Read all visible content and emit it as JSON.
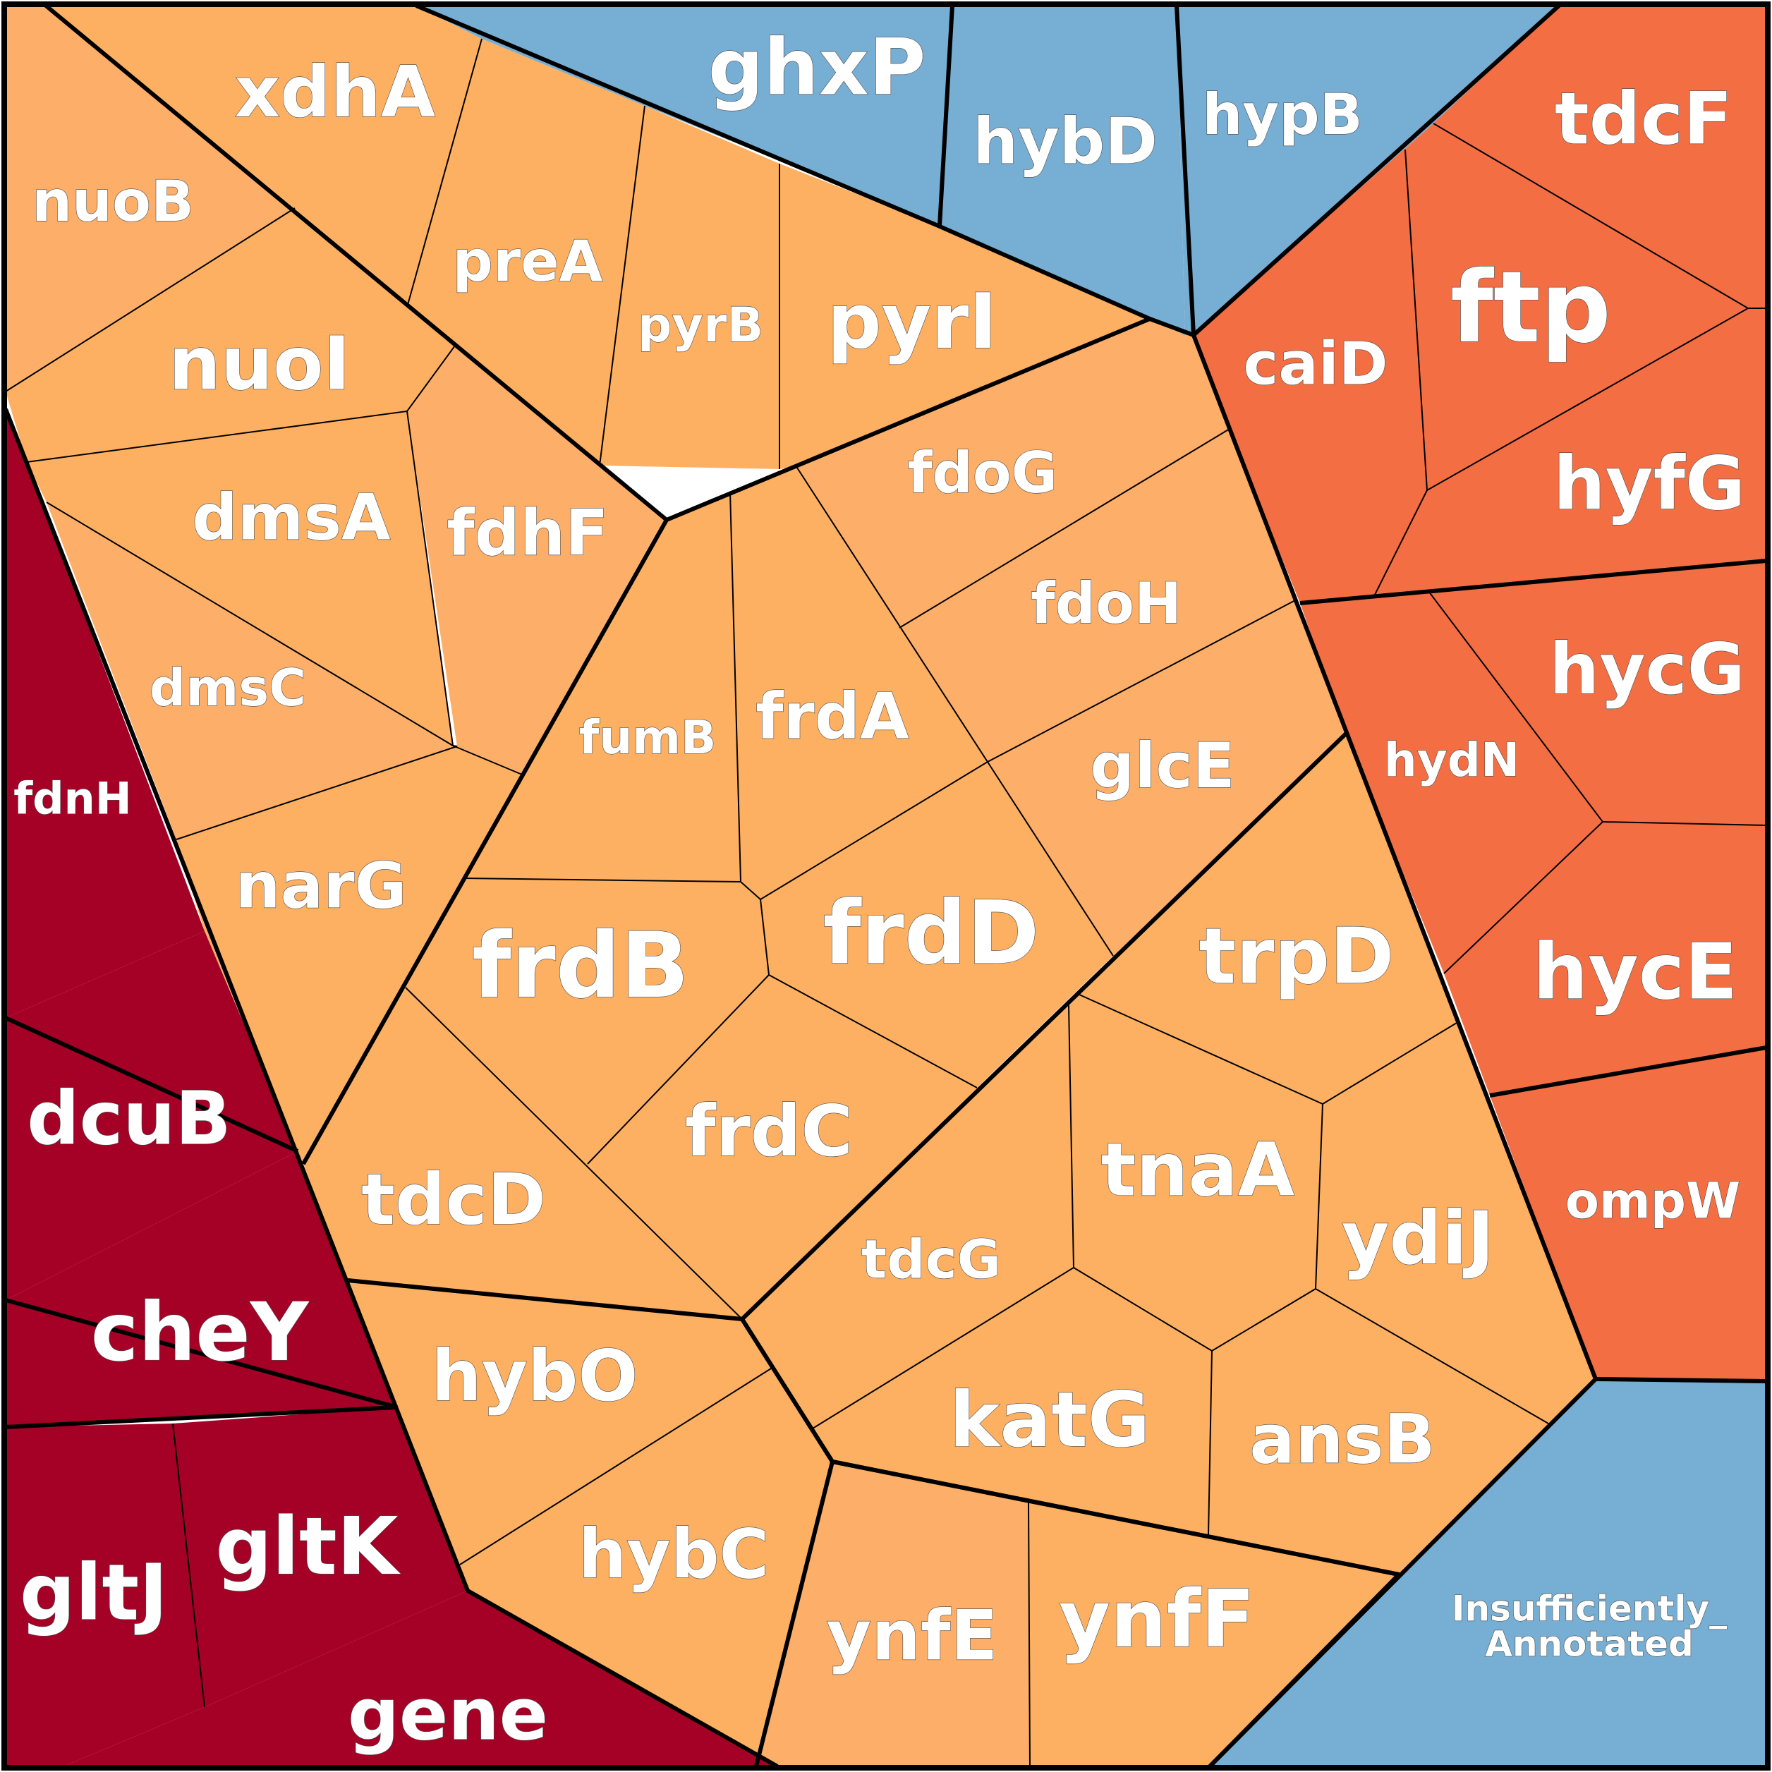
{
  "chart_data": {
    "type": "voronoi-treemap",
    "title": "",
    "colors": {
      "blue": "#77aed3",
      "orange": "#fdb062",
      "orange_light": "#fdae68",
      "red_orange": "#f46e44",
      "dark_red": "#a50026"
    },
    "cells": [
      {
        "label": "xdhA",
        "group": "orange"
      },
      {
        "label": "nuoB",
        "group": "orange_light"
      },
      {
        "label": "preA",
        "group": "orange"
      },
      {
        "label": "pyrB",
        "group": "orange"
      },
      {
        "label": "pyrI",
        "group": "orange"
      },
      {
        "label": "nuoI",
        "group": "orange"
      },
      {
        "label": "dmsA",
        "group": "orange"
      },
      {
        "label": "fdhF",
        "group": "orange_light"
      },
      {
        "label": "dmsC",
        "group": "orange_light"
      },
      {
        "label": "fdoG",
        "group": "orange_light"
      },
      {
        "label": "fdoH",
        "group": "orange_light"
      },
      {
        "label": "fumB",
        "group": "orange"
      },
      {
        "label": "frdA",
        "group": "orange"
      },
      {
        "label": "glcE",
        "group": "orange_light"
      },
      {
        "label": "narG",
        "group": "orange"
      },
      {
        "label": "frdB",
        "group": "orange"
      },
      {
        "label": "frdD",
        "group": "orange"
      },
      {
        "label": "trpD",
        "group": "orange"
      },
      {
        "label": "tdcD",
        "group": "orange"
      },
      {
        "label": "frdC",
        "group": "orange"
      },
      {
        "label": "tnaA",
        "group": "orange"
      },
      {
        "label": "ydiJ",
        "group": "orange"
      },
      {
        "label": "tdcG",
        "group": "orange"
      },
      {
        "label": "hybO",
        "group": "orange"
      },
      {
        "label": "katG",
        "group": "orange"
      },
      {
        "label": "ansB",
        "group": "orange"
      },
      {
        "label": "hybC",
        "group": "orange"
      },
      {
        "label": "ynfE",
        "group": "orange_light"
      },
      {
        "label": "ynfF",
        "group": "orange"
      },
      {
        "label": "ghxP",
        "group": "blue"
      },
      {
        "label": "hybD",
        "group": "blue"
      },
      {
        "label": "hypB",
        "group": "blue"
      },
      {
        "label": "Insufficiently_ Annotated",
        "group": "blue"
      },
      {
        "label": "tdcF",
        "group": "red_orange"
      },
      {
        "label": "ftp",
        "group": "red_orange"
      },
      {
        "label": "caiD",
        "group": "red_orange"
      },
      {
        "label": "hyfG",
        "group": "red_orange"
      },
      {
        "label": "hycG",
        "group": "red_orange"
      },
      {
        "label": "hydN",
        "group": "red_orange"
      },
      {
        "label": "hycE",
        "group": "red_orange"
      },
      {
        "label": "ompW",
        "group": "red_orange"
      },
      {
        "label": "fdnH",
        "group": "dark_red"
      },
      {
        "label": "dcuB",
        "group": "dark_red"
      },
      {
        "label": "cheY",
        "group": "dark_red"
      },
      {
        "label": "gltJ",
        "group": "dark_red"
      },
      {
        "label": "gltK",
        "group": "dark_red"
      },
      {
        "label": "gene",
        "group": "dark_red"
      }
    ]
  }
}
